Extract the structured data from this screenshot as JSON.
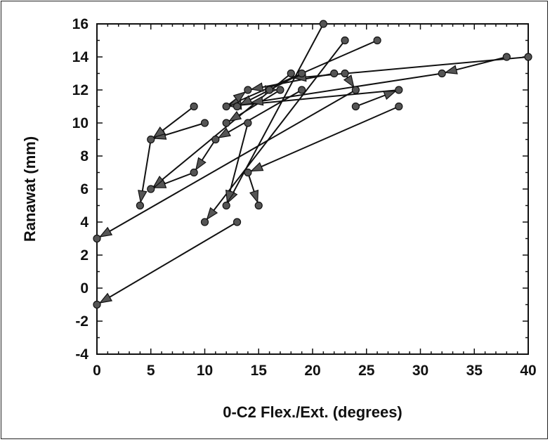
{
  "chart_data": {
    "type": "scatter",
    "subtype": "arrow-segments",
    "title": "",
    "xlabel": "0-C2  Flex./Ext.  (degrees)",
    "ylabel": "Ranawat  (mm)",
    "xlim": [
      0,
      40
    ],
    "ylim": [
      -4,
      16
    ],
    "xticks": [
      "0",
      "5",
      "10",
      "15",
      "20",
      "25",
      "30",
      "35",
      "40"
    ],
    "yticks": [
      "-4",
      "-2",
      "0",
      "2",
      "4",
      "6",
      "8",
      "10",
      "12",
      "14",
      "16"
    ],
    "grid": false,
    "legend": "none",
    "marker_color": "#555555",
    "line_color": "#111111",
    "segments": [
      {
        "from": [
          21,
          16
        ],
        "to": [
          12,
          5
        ]
      },
      {
        "from": [
          23,
          15
        ],
        "to": [
          10,
          4
        ]
      },
      {
        "from": [
          26,
          15
        ],
        "to": [
          12,
          11
        ]
      },
      {
        "from": [
          40,
          14
        ],
        "to": [
          18,
          12.7
        ]
      },
      {
        "from": [
          38,
          14
        ],
        "to": [
          32,
          13
        ]
      },
      {
        "from": [
          32,
          13
        ],
        "to": [
          14,
          11.2
        ]
      },
      {
        "from": [
          28,
          12
        ],
        "to": [
          12,
          11
        ]
      },
      {
        "from": [
          28,
          11
        ],
        "to": [
          14,
          7
        ]
      },
      {
        "from": [
          24,
          12
        ],
        "to": [
          0,
          3
        ]
      },
      {
        "from": [
          24,
          11
        ],
        "to": [
          28,
          12
        ]
      },
      {
        "from": [
          22,
          13
        ],
        "to": [
          14,
          12
        ]
      },
      {
        "from": [
          23,
          13
        ],
        "to": [
          24,
          12
        ]
      },
      {
        "from": [
          19,
          12
        ],
        "to": [
          11,
          9
        ]
      },
      {
        "from": [
          19,
          13
        ],
        "to": [
          13,
          11
        ]
      },
      {
        "from": [
          18,
          13
        ],
        "to": [
          5,
          6
        ]
      },
      {
        "from": [
          17,
          12
        ],
        "to": [
          12,
          10
        ]
      },
      {
        "from": [
          14,
          10
        ],
        "to": [
          12,
          5
        ]
      },
      {
        "from": [
          13,
          4
        ],
        "to": [
          0,
          -1
        ]
      },
      {
        "from": [
          10,
          10
        ],
        "to": [
          5,
          9
        ]
      },
      {
        "from": [
          9,
          11
        ],
        "to": [
          5,
          9
        ]
      },
      {
        "from": [
          5,
          9
        ],
        "to": [
          4,
          5
        ]
      },
      {
        "from": [
          9,
          7
        ],
        "to": [
          5,
          6
        ]
      },
      {
        "from": [
          11,
          9
        ],
        "to": [
          9,
          7
        ]
      },
      {
        "from": [
          14,
          7
        ],
        "to": [
          15,
          5
        ]
      },
      {
        "from": [
          12,
          11
        ],
        "to": [
          14,
          12
        ]
      },
      {
        "from": [
          16,
          12
        ],
        "to": [
          17,
          12
        ]
      }
    ],
    "points": [
      [
        21,
        16
      ],
      [
        23,
        15
      ],
      [
        26,
        15
      ],
      [
        40,
        14
      ],
      [
        38,
        14
      ],
      [
        32,
        13
      ],
      [
        28,
        12
      ],
      [
        28,
        11
      ],
      [
        24,
        12
      ],
      [
        24,
        11
      ],
      [
        22,
        13
      ],
      [
        23,
        13
      ],
      [
        19,
        13
      ],
      [
        19,
        12
      ],
      [
        18,
        13
      ],
      [
        17,
        12
      ],
      [
        16,
        12
      ],
      [
        14,
        12
      ],
      [
        13,
        11
      ],
      [
        12,
        11
      ],
      [
        12,
        10
      ],
      [
        14,
        10
      ],
      [
        11,
        9
      ],
      [
        10,
        10
      ],
      [
        9,
        11
      ],
      [
        5,
        9
      ],
      [
        9,
        7
      ],
      [
        5,
        6
      ],
      [
        4,
        5
      ],
      [
        14,
        7
      ],
      [
        15,
        5
      ],
      [
        12,
        5
      ],
      [
        10,
        4
      ],
      [
        13,
        4
      ],
      [
        0,
        3
      ],
      [
        0,
        -1
      ]
    ]
  }
}
